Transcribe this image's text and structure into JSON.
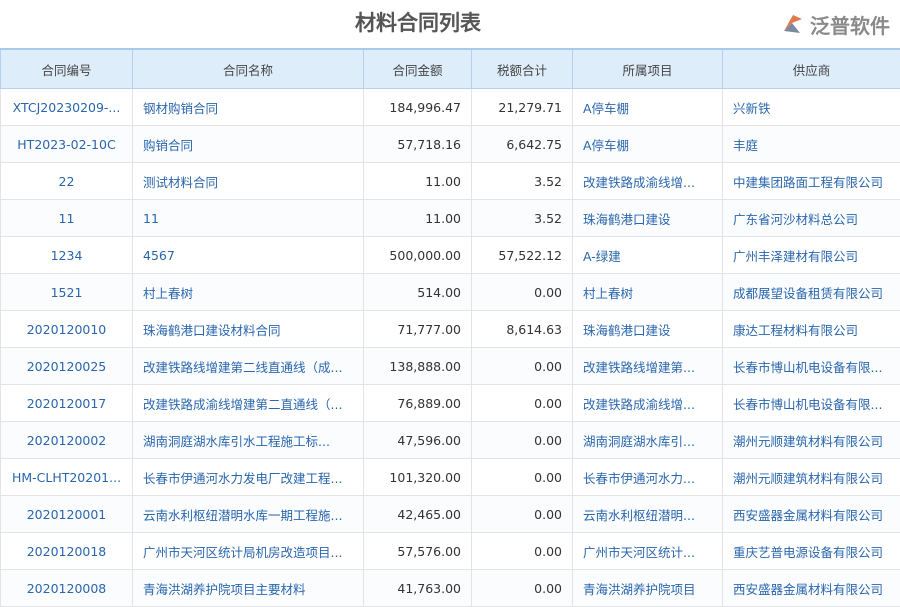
{
  "title": "材料合同列表",
  "columns": [
    "合同编号",
    "合同名称",
    "合同金额",
    "税额合计",
    "所属项目",
    "供应商"
  ],
  "rows": [
    [
      "XTCJ20230209-...",
      "钢材购销合同",
      "184,996.47",
      "21,279.71",
      "A停车棚",
      "兴新铁"
    ],
    [
      "HT2023-02-10C",
      "购销合同",
      "57,718.16",
      "6,642.75",
      "A停车棚",
      "丰庭"
    ],
    [
      "22",
      "测试材料合同",
      "11.00",
      "3.52",
      "改建铁路成渝线增...",
      "中建集团路面工程有限公司"
    ],
    [
      "11",
      "11",
      "11.00",
      "3.52",
      "珠海鹤港口建设",
      "广东省河沙材料总公司"
    ],
    [
      "1234",
      "4567",
      "500,000.00",
      "57,522.12",
      "A-绿建",
      "广州丰泽建材有限公司"
    ],
    [
      "1521",
      "村上春树",
      "514.00",
      "0.00",
      "村上春树",
      "成都展望设备租赁有限公司"
    ],
    [
      "2020120010",
      "珠海鹤港口建设材料合同",
      "71,777.00",
      "8,614.63",
      "珠海鹤港口建设",
      "康达工程材料有限公司"
    ],
    [
      "2020120025",
      "改建铁路线增建第二线直通线（成...",
      "138,888.00",
      "0.00",
      "改建铁路线增建第...",
      "长春市博山机电设备有限..."
    ],
    [
      "2020120017",
      "改建铁路成渝线增建第二直通线（...",
      "76,889.00",
      "0.00",
      "改建铁路成渝线增...",
      "长春市博山机电设备有限..."
    ],
    [
      "2020120002",
      "湖南洞庭湖水库引水工程施工标...",
      "47,596.00",
      "0.00",
      "湖南洞庭湖水库引...",
      "潮州元顺建筑材料有限公司"
    ],
    [
      "HM-CLHT20201...",
      "长春市伊通河水力发电厂改建工程...",
      "101,320.00",
      "0.00",
      "长春市伊通河水力...",
      "潮州元顺建筑材料有限公司"
    ],
    [
      "2020120001",
      "云南水利枢纽潜明水库一期工程施...",
      "42,465.00",
      "0.00",
      "云南水利枢纽潜明...",
      "西安盛器金属材料有限公司"
    ],
    [
      "2020120018",
      "广州市天河区统计局机房改造项目...",
      "57,576.00",
      "0.00",
      "广州市天河区统计...",
      "重庆艺普电源设备有限公司"
    ],
    [
      "2020120008",
      "青海洪湖养护院项目主要材料",
      "41,763.00",
      "0.00",
      "青海洪湖养护院项目",
      "西安盛器金属材料有限公司"
    ]
  ],
  "watermark": "泛普软件",
  "colors": {
    "header_bg": "#deedfa",
    "link": "#2a66ad",
    "border": "#b3d1ec"
  }
}
